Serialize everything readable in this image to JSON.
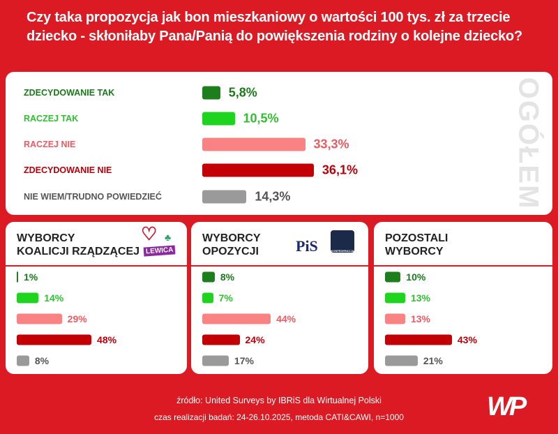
{
  "title": "Czy taka propozycja jak bon mieszkaniowy o wartości 100 tys. zł za trzecie dziecko - skłoniłaby Pana/Panią do powiększenia rodziny o kolejne dziecko?",
  "colors": {
    "background": "#dc1a24",
    "zdecydowanie_tak": "#1c7f1c",
    "raczej_tak": "#1fd41f",
    "raczej_nie": "#f98383",
    "zdecydowanie_nie": "#c20006",
    "nie_wiem": "#9a9a9a"
  },
  "chart_data": [
    {
      "type": "bar",
      "title": "OGÓŁEM",
      "categories": [
        "ZDECYDOWANIE TAK",
        "RACZEJ TAK",
        "RACZEJ NIE",
        "ZDECYDOWANIE NIE",
        "NIE WIEM/TRUDNO POWIEDZIEĆ"
      ],
      "values": [
        5.8,
        10.5,
        33.3,
        36.1,
        14.3
      ],
      "labels": [
        "5,8%",
        "10,5%",
        "33,3%",
        "36,1%",
        "14,3%"
      ],
      "unit": "%"
    },
    {
      "type": "bar",
      "title": "WYBORCY KOALICJI RZĄDZĄCEJ",
      "title_lines": [
        "WYBORCY",
        "KOALICJI RZĄDZĄCEJ"
      ],
      "logos": [
        "LEWICA"
      ],
      "categories": [
        "ZDECYDOWANIE TAK",
        "RACZEJ TAK",
        "RACZEJ NIE",
        "ZDECYDOWANIE NIE",
        "NIE WIEM/TRUDNO POWIEDZIEĆ"
      ],
      "values": [
        1,
        14,
        29,
        48,
        8
      ],
      "labels": [
        "1%",
        "14%",
        "29%",
        "48%",
        "8%"
      ],
      "unit": "%"
    },
    {
      "type": "bar",
      "title": "WYBORCY OPOZYCJI",
      "title_lines": [
        "WYBORCY",
        "OPOZYCJI"
      ],
      "logos": [
        "PiS",
        "KONFEDERACJA"
      ],
      "categories": [
        "ZDECYDOWANIE TAK",
        "RACZEJ TAK",
        "RACZEJ NIE",
        "ZDECYDOWANIE NIE",
        "NIE WIEM/TRUDNO POWIEDZIEĆ"
      ],
      "values": [
        8,
        7,
        44,
        24,
        17
      ],
      "labels": [
        "8%",
        "7%",
        "44%",
        "24%",
        "17%"
      ],
      "unit": "%"
    },
    {
      "type": "bar",
      "title": "POZOSTALI WYBORCY",
      "title_lines": [
        "POZOSTALI",
        "WYBORCY"
      ],
      "categories": [
        "ZDECYDOWANIE TAK",
        "RACZEJ TAK",
        "RACZEJ NIE",
        "ZDECYDOWANIE NIE",
        "NIE WIEM/TRUDNO POWIEDZIEĆ"
      ],
      "values": [
        10,
        13,
        13,
        43,
        21
      ],
      "labels": [
        "10%",
        "13%",
        "13%",
        "43%",
        "21%"
      ],
      "unit": "%"
    }
  ],
  "footer": {
    "source": "źródło: United Surveys by IBRiS dla Wirtualnej Polski",
    "method": "czas realizacji badań: 24-26.10.2025, metoda CATI&CAWI, n=1000",
    "logo": "WP"
  }
}
